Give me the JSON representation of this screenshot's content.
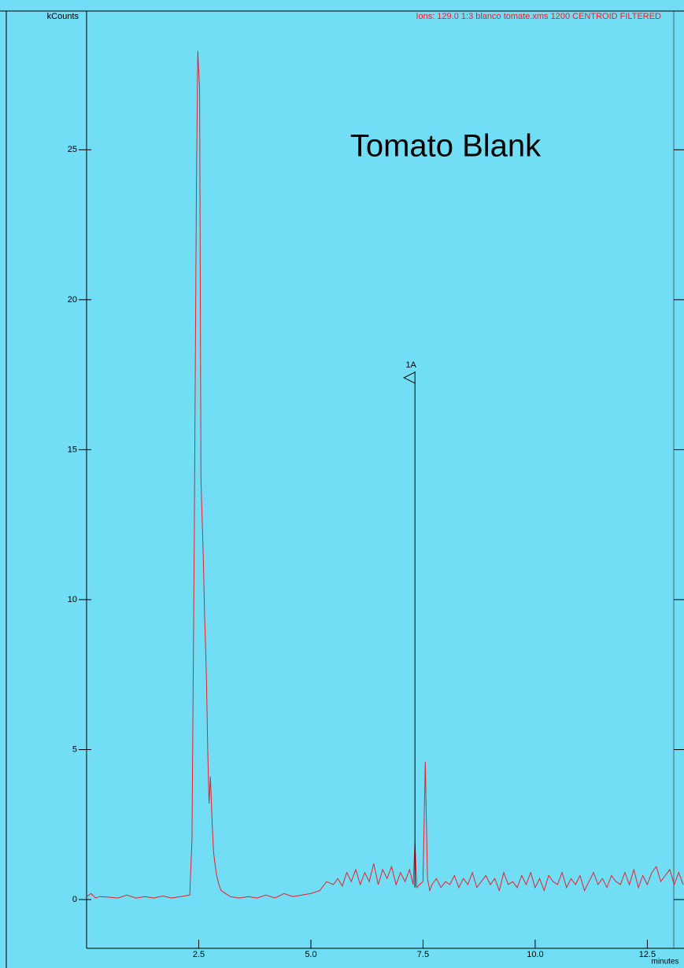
{
  "chart_data": {
    "type": "line",
    "title": "Ions: 129.0 1:3 blanco tomate.xms  1200 CENTROID FILTERED",
    "annotation": "Tomato Blank",
    "y_label": "kCounts",
    "x_label": "minutes",
    "peak_label": {
      "text": "1A",
      "x": 7.32,
      "y": 17.4
    },
    "color": "#e8202a",
    "x": [
      0,
      0.1,
      0.2,
      0.3,
      0.5,
      0.7,
      0.9,
      1.1,
      1.3,
      1.5,
      1.7,
      1.9,
      2.1,
      2.3,
      2.35,
      2.4,
      2.45,
      2.48,
      2.52,
      2.55,
      2.6,
      2.63,
      2.67,
      2.7,
      2.73,
      2.76,
      2.8,
      2.83,
      2.86,
      2.9,
      2.95,
      3.0,
      3.1,
      3.2,
      3.4,
      3.6,
      3.8,
      4.0,
      4.2,
      4.4,
      4.6,
      4.8,
      5.0,
      5.2,
      5.35,
      5.5,
      5.6,
      5.7,
      5.8,
      5.9,
      6.0,
      6.1,
      6.2,
      6.3,
      6.4,
      6.5,
      6.6,
      6.7,
      6.8,
      6.9,
      7.0,
      7.1,
      7.2,
      7.28,
      7.32,
      7.36,
      7.42,
      7.5,
      7.55,
      7.6,
      7.65,
      7.7,
      7.8,
      7.9,
      8.0,
      8.1,
      8.2,
      8.3,
      8.4,
      8.5,
      8.6,
      8.7,
      8.8,
      8.9,
      9.0,
      9.1,
      9.2,
      9.3,
      9.4,
      9.5,
      9.6,
      9.7,
      9.8,
      9.9,
      10.0,
      10.1,
      10.2,
      10.3,
      10.4,
      10.5,
      10.6,
      10.7,
      10.8,
      10.9,
      11.0,
      11.1,
      11.2,
      11.3,
      11.4,
      11.5,
      11.6,
      11.7,
      11.8,
      11.9,
      12.0,
      12.1,
      12.2,
      12.3,
      12.4,
      12.5,
      12.6,
      12.7,
      12.8,
      12.9,
      13.0,
      13.1,
      13.2,
      13.3
    ],
    "values": [
      0.1,
      0.2,
      0.05,
      0.1,
      0.08,
      0.05,
      0.15,
      0.05,
      0.1,
      0.05,
      0.12,
      0.05,
      0.1,
      0.15,
      2.0,
      12,
      24,
      28.3,
      27,
      14,
      11.5,
      9.5,
      7.5,
      5,
      3.2,
      4.1,
      2.5,
      1.6,
      1.2,
      0.8,
      0.5,
      0.3,
      0.2,
      0.1,
      0.05,
      0.1,
      0.05,
      0.15,
      0.05,
      0.2,
      0.1,
      0.15,
      0.2,
      0.3,
      0.6,
      0.5,
      0.7,
      0.45,
      0.9,
      0.6,
      1.0,
      0.5,
      0.9,
      0.6,
      1.2,
      0.5,
      1.0,
      0.7,
      1.1,
      0.5,
      0.9,
      0.6,
      1.0,
      0.5,
      1.9,
      0.4,
      0.5,
      0.6,
      4.6,
      0.7,
      0.3,
      0.5,
      0.7,
      0.4,
      0.6,
      0.5,
      0.8,
      0.4,
      0.7,
      0.5,
      0.9,
      0.4,
      0.6,
      0.8,
      0.5,
      0.7,
      0.3,
      0.9,
      0.5,
      0.6,
      0.4,
      0.8,
      0.5,
      0.9,
      0.4,
      0.7,
      0.3,
      0.8,
      0.6,
      0.5,
      0.9,
      0.4,
      0.7,
      0.5,
      0.8,
      0.3,
      0.6,
      0.9,
      0.5,
      0.7,
      0.4,
      0.8,
      0.6,
      0.5,
      0.9,
      0.5,
      1.0,
      0.4,
      0.8,
      0.5,
      0.9,
      1.1,
      0.6,
      0.8,
      1.0,
      0.5,
      0.9,
      0.5
    ],
    "xlim": [
      0,
      13.3
    ],
    "ylim": [
      -1.6,
      29.6
    ],
    "xticks": [
      2.5,
      {
        "value": 5,
        "label": "5.0"
      },
      7.5,
      {
        "value": 10,
        "label": "10.0"
      },
      12.5
    ],
    "yticks": [
      0,
      5,
      10,
      15,
      20,
      25
    ]
  }
}
